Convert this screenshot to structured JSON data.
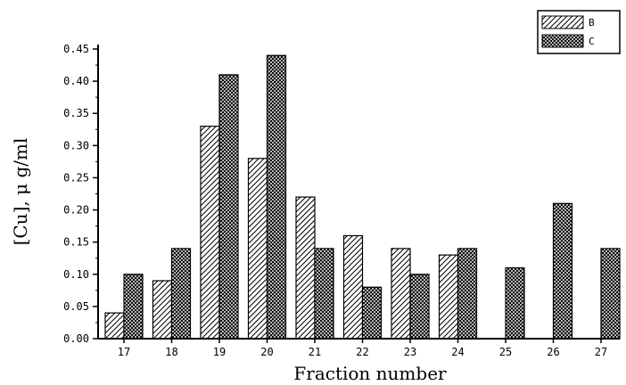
{
  "chart_data": {
    "type": "bar",
    "title": "",
    "xlabel": "Fraction number",
    "ylabel": "[Cu], μ g/ml",
    "categories": [
      "17",
      "18",
      "19",
      "20",
      "21",
      "22",
      "23",
      "24",
      "25",
      "26",
      "27"
    ],
    "series": [
      {
        "name": "B",
        "pattern": "diagonal-hatch",
        "values": [
          0.04,
          0.09,
          0.33,
          0.28,
          0.22,
          0.16,
          0.14,
          0.13,
          0,
          0,
          0
        ]
      },
      {
        "name": "C",
        "pattern": "crosshatch",
        "values": [
          0.1,
          0.14,
          0.41,
          0.44,
          0.14,
          0.08,
          0.1,
          0.14,
          0.11,
          0.21,
          0.14
        ]
      }
    ],
    "ylim": [
      0,
      0.45
    ],
    "yticks": [
      "0.00",
      "0.05",
      "0.10",
      "0.15",
      "0.20",
      "0.25",
      "0.30",
      "0.35",
      "0.40",
      "0.45"
    ],
    "legend_position": "top-right",
    "grid": false
  }
}
